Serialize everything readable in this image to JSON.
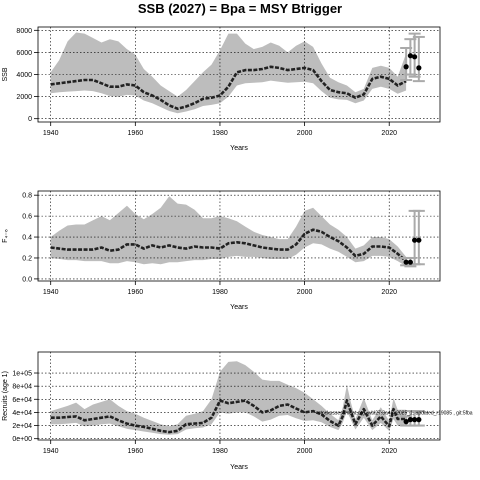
{
  "title": "SSB (2027)  = Bpa = MSY Btrigger",
  "colors": {
    "band": "#bdbdbd",
    "line": "#222222",
    "grid": "#000000",
    "errbar": "#aaaaaa",
    "point": "#000000"
  },
  "chart_data": [
    {
      "type": "line",
      "name": "ssb-panel",
      "xlabel": "Years",
      "ylabel": "SSB",
      "xlim": [
        1937,
        2032
      ],
      "ylim": [
        -300,
        8300
      ],
      "xticks": [
        1940,
        1960,
        1980,
        2000,
        2020
      ],
      "yticks": [
        0,
        2000,
        4000,
        6000,
        8000
      ],
      "ytick_labels": [
        "0",
        "2000",
        "4000",
        "6000",
        "8000"
      ],
      "grid": true,
      "x": [
        1940,
        1942,
        1944,
        1946,
        1948,
        1950,
        1952,
        1954,
        1956,
        1958,
        1960,
        1962,
        1964,
        1966,
        1968,
        1970,
        1972,
        1974,
        1976,
        1978,
        1980,
        1982,
        1984,
        1986,
        1988,
        1990,
        1992,
        1994,
        1996,
        1998,
        2000,
        2002,
        2004,
        2006,
        2008,
        2010,
        2012,
        2014,
        2016,
        2018,
        2020,
        2022,
        2024
      ],
      "median": [
        3100,
        3200,
        3300,
        3400,
        3500,
        3500,
        3200,
        2900,
        2900,
        3100,
        3000,
        2400,
        2100,
        1700,
        1200,
        900,
        1100,
        1400,
        1800,
        1900,
        2100,
        2900,
        4200,
        4400,
        4400,
        4500,
        4700,
        4600,
        4400,
        4500,
        4600,
        4400,
        3400,
        2600,
        2400,
        2300,
        1900,
        2200,
        3600,
        3800,
        3600,
        3000,
        3400
      ],
      "lower": [
        2300,
        2400,
        2450,
        2500,
        2550,
        2500,
        2300,
        2050,
        2000,
        2150,
        2100,
        1650,
        1400,
        1050,
        700,
        500,
        650,
        850,
        1150,
        1250,
        1400,
        2000,
        3000,
        3200,
        3250,
        3300,
        3450,
        3350,
        3250,
        3300,
        3350,
        3200,
        2500,
        1900,
        1750,
        1700,
        1400,
        1650,
        2700,
        2900,
        2700,
        2250,
        2550
      ],
      "upper": [
        4200,
        5300,
        7000,
        7800,
        7700,
        7300,
        6900,
        7200,
        7000,
        6300,
        5800,
        4500,
        3800,
        3000,
        2500,
        2000,
        2600,
        3400,
        4200,
        4900,
        6200,
        7700,
        7700,
        6800,
        6300,
        6500,
        6900,
        6600,
        6000,
        6600,
        7000,
        6500,
        5000,
        3700,
        3300,
        3000,
        2400,
        2700,
        4600,
        4800,
        4600,
        3800,
        5900
      ],
      "forecast": [
        {
          "x": 2024,
          "y": 4700,
          "lo": 3500,
          "hi": 6400
        },
        {
          "x": 2025,
          "y": 5700,
          "lo": 4000,
          "hi": 7200
        },
        {
          "x": 2026,
          "y": 5600,
          "lo": 3800,
          "hi": 7700
        },
        {
          "x": 2027,
          "y": 4600,
          "lo": 3400,
          "hi": 7400
        }
      ]
    },
    {
      "type": "line",
      "name": "fishing-mortality-panel",
      "xlabel": "Years",
      "ylabel": "F₄₋₆",
      "xlim": [
        1937,
        2032
      ],
      "ylim": [
        -0.02,
        0.84
      ],
      "xticks": [
        1940,
        1960,
        1980,
        2000,
        2020
      ],
      "yticks": [
        0.0,
        0.2,
        0.4,
        0.6,
        0.8
      ],
      "ytick_labels": [
        "0.0",
        "0.2",
        "0.4",
        "0.6",
        "0.8"
      ],
      "grid": true,
      "x": [
        1940,
        1942,
        1944,
        1946,
        1948,
        1950,
        1952,
        1954,
        1956,
        1958,
        1960,
        1962,
        1964,
        1966,
        1968,
        1970,
        1972,
        1974,
        1976,
        1978,
        1980,
        1982,
        1984,
        1986,
        1988,
        1990,
        1992,
        1994,
        1996,
        1998,
        2000,
        2002,
        2004,
        2006,
        2008,
        2010,
        2012,
        2014,
        2016,
        2018,
        2020,
        2022,
        2024
      ],
      "median": [
        0.3,
        0.29,
        0.28,
        0.28,
        0.28,
        0.28,
        0.3,
        0.27,
        0.28,
        0.33,
        0.33,
        0.29,
        0.32,
        0.3,
        0.32,
        0.3,
        0.29,
        0.31,
        0.3,
        0.3,
        0.29,
        0.34,
        0.35,
        0.34,
        0.32,
        0.3,
        0.29,
        0.28,
        0.28,
        0.33,
        0.43,
        0.47,
        0.45,
        0.4,
        0.36,
        0.3,
        0.22,
        0.24,
        0.31,
        0.31,
        0.3,
        0.24,
        0.17
      ],
      "lower": [
        0.2,
        0.19,
        0.18,
        0.18,
        0.17,
        0.17,
        0.17,
        0.15,
        0.15,
        0.17,
        0.16,
        0.14,
        0.15,
        0.14,
        0.16,
        0.16,
        0.17,
        0.18,
        0.18,
        0.19,
        0.19,
        0.21,
        0.22,
        0.21,
        0.21,
        0.2,
        0.19,
        0.19,
        0.19,
        0.23,
        0.3,
        0.34,
        0.33,
        0.29,
        0.26,
        0.21,
        0.16,
        0.17,
        0.22,
        0.22,
        0.21,
        0.17,
        0.12
      ],
      "upper": [
        0.4,
        0.46,
        0.51,
        0.52,
        0.52,
        0.56,
        0.6,
        0.56,
        0.63,
        0.7,
        0.62,
        0.57,
        0.62,
        0.68,
        0.79,
        0.72,
        0.71,
        0.66,
        0.58,
        0.58,
        0.6,
        0.58,
        0.55,
        0.5,
        0.45,
        0.42,
        0.4,
        0.38,
        0.38,
        0.5,
        0.65,
        0.68,
        0.6,
        0.52,
        0.47,
        0.4,
        0.29,
        0.32,
        0.4,
        0.4,
        0.38,
        0.31,
        0.21
      ],
      "forecast": [
        {
          "x": 2024,
          "y": 0.16,
          "lo": 0.13,
          "hi": 0.2
        },
        {
          "x": 2025,
          "y": 0.16,
          "lo": 0.12,
          "hi": 0.2
        },
        {
          "x": 2026,
          "y": 0.37,
          "lo": 0.14,
          "hi": 0.65
        },
        {
          "x": 2027,
          "y": 0.37,
          "lo": 0.14,
          "hi": 0.65
        }
      ]
    },
    {
      "type": "line",
      "name": "recruitment-panel",
      "xlabel": "Years",
      "ylabel": "Recruits (age 1)",
      "xlim": [
        1937,
        2032
      ],
      "ylim": [
        -2000,
        132000
      ],
      "xticks": [
        1940,
        1960,
        1980,
        2000,
        2020
      ],
      "yticks": [
        0,
        20000,
        40000,
        60000,
        80000,
        100000
      ],
      "ytick_labels": [
        "0e+00",
        "2e+04",
        "4e+04",
        "6e+04",
        "8e+04",
        "1e+05"
      ],
      "grid": true,
      "annotation": "stockassessment.org, wbl27.3a46_2025_1, updated_r19085 , git:5fba",
      "x": [
        1940,
        1942,
        1944,
        1946,
        1948,
        1950,
        1952,
        1954,
        1956,
        1958,
        1960,
        1962,
        1964,
        1966,
        1968,
        1970,
        1972,
        1974,
        1976,
        1978,
        1980,
        1982,
        1984,
        1986,
        1988,
        1990,
        1992,
        1994,
        1996,
        1998,
        2000,
        2002,
        2004,
        2006,
        2008,
        2009,
        2010,
        2011,
        2012,
        2014,
        2016,
        2018,
        2020,
        2021,
        2022,
        2024
      ],
      "median": [
        32000,
        32000,
        33000,
        34000,
        28000,
        30000,
        32000,
        34000,
        28000,
        23000,
        20000,
        18000,
        15000,
        12000,
        10000,
        12000,
        22000,
        23000,
        24000,
        32000,
        58000,
        54000,
        56000,
        58000,
        50000,
        40000,
        43000,
        50000,
        52000,
        46000,
        40000,
        42000,
        37000,
        27000,
        20000,
        34000,
        58000,
        40000,
        22000,
        45000,
        20000,
        34000,
        19000,
        45000,
        30000,
        30000
      ],
      "lower": [
        22000,
        22000,
        23000,
        24000,
        19000,
        20000,
        22000,
        23000,
        19000,
        15000,
        13000,
        11000,
        9000,
        7000,
        6000,
        7000,
        14000,
        16000,
        17000,
        22000,
        40000,
        38000,
        40000,
        40000,
        34000,
        26000,
        29000,
        35000,
        36000,
        31000,
        27000,
        28000,
        25000,
        18000,
        13000,
        24000,
        42000,
        28000,
        14000,
        32000,
        13000,
        24000,
        12000,
        30000,
        20000,
        20000
      ],
      "upper": [
        42000,
        46000,
        50000,
        55000,
        45000,
        52000,
        56000,
        60000,
        50000,
        42000,
        38000,
        32000,
        27000,
        22000,
        19000,
        22000,
        35000,
        38000,
        42000,
        60000,
        102000,
        117000,
        118000,
        112000,
        102000,
        90000,
        88000,
        88000,
        82000,
        77000,
        70000,
        60000,
        50000,
        38000,
        28000,
        47000,
        82000,
        54000,
        30000,
        62000,
        28000,
        48000,
        27000,
        62000,
        44000,
        44000
      ],
      "forecast": [
        {
          "x": 2024,
          "y": 26000,
          "lo": 20000,
          "hi": 34000
        },
        {
          "x": 2025,
          "y": 29000,
          "lo": 20000,
          "hi": 42000
        },
        {
          "x": 2026,
          "y": 29000,
          "lo": 20000,
          "hi": 42000
        },
        {
          "x": 2027,
          "y": 29000,
          "lo": 20000,
          "hi": 42000
        }
      ]
    }
  ]
}
